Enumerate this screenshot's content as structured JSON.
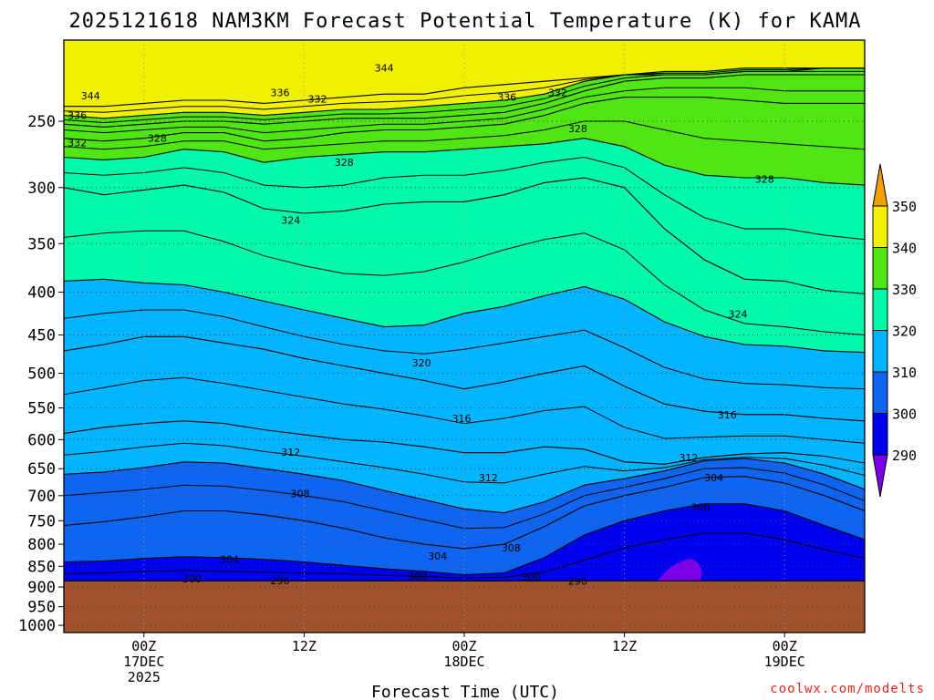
{
  "chart_data": {
    "type": "heatmap",
    "title": "2025121618 NAM3KM Forecast Potential Temperature (K) for KAMA",
    "xlabel": "Forecast Time (UTC)",
    "ylabel": "",
    "y_scale": "log-pressure",
    "ylim": [
      1000,
      200
    ],
    "y_ticks": [
      250,
      300,
      350,
      400,
      450,
      500,
      550,
      600,
      650,
      700,
      750,
      800,
      850,
      900,
      950,
      1000
    ],
    "x_ticks": [
      {
        "hour": 6,
        "line1": "00Z",
        "line2": "17DEC",
        "line3": "2025"
      },
      {
        "hour": 18,
        "line1": "12Z",
        "line2": "",
        "line3": ""
      },
      {
        "hour": 30,
        "line1": "00Z",
        "line2": "18DEC",
        "line3": ""
      },
      {
        "hour": 42,
        "line1": "12Z",
        "line2": "",
        "line3": ""
      },
      {
        "hour": 54,
        "line1": "00Z",
        "line2": "19DEC",
        "line3": ""
      }
    ],
    "xlim": [
      0,
      60
    ],
    "grid": true,
    "surface_pressure": 885,
    "colorbar": {
      "levels": [
        290,
        300,
        310,
        320,
        330,
        340,
        350
      ],
      "colors": [
        "#7a00e6",
        "#0000f0",
        "#0f64f0",
        "#00b4ff",
        "#00faaa",
        "#50e614",
        "#f0f000",
        "#f0a000"
      ]
    },
    "isotherm_lines": [
      {
        "value": 344,
        "levels": [
          240,
          240,
          238,
          236,
          236,
          238,
          236,
          234,
          232,
          232,
          228,
          226,
          224,
          222,
          220,
          220,
          220,
          218,
          218,
          216,
          216
        ]
      },
      {
        "value": 340,
        "levels": [
          246,
          248,
          246,
          244,
          244,
          246,
          244,
          242,
          242,
          240,
          238,
          236,
          232,
          224,
          220,
          218,
          218,
          216,
          216,
          216,
          216
        ]
      },
      {
        "value": 336,
        "levels": [
          252,
          254,
          252,
          250,
          250,
          252,
          250,
          248,
          248,
          248,
          246,
          244,
          238,
          230,
          224,
          222,
          222,
          220,
          220,
          220,
          220
        ]
      },
      {
        "value": 332,
        "levels": [
          262,
          264,
          262,
          258,
          258,
          264,
          262,
          258,
          256,
          256,
          254,
          252,
          246,
          238,
          234,
          234,
          234,
          236,
          238,
          238,
          238
        ]
      },
      {
        "value": 328,
        "levels": [
          276,
          278,
          276,
          270,
          272,
          280,
          276,
          274,
          272,
          272,
          270,
          268,
          266,
          262,
          268,
          282,
          290,
          292,
          292,
          296,
          298
        ]
      },
      {
        "value": 324,
        "levels": [
          300,
          306,
          302,
          298,
          304,
          318,
          322,
          320,
          314,
          312,
          312,
          306,
          296,
          292,
          300,
          336,
          366,
          386,
          388,
          398,
          402
        ]
      },
      {
        "value": 320,
        "levels": [
          388,
          386,
          390,
          392,
          400,
          410,
          420,
          430,
          440,
          438,
          424,
          416,
          404,
          394,
          408,
          434,
          452,
          462,
          464,
          470,
          472
        ]
      },
      {
        "value": 316,
        "levels": [
          470,
          462,
          452,
          452,
          460,
          468,
          480,
          490,
          500,
          510,
          522,
          512,
          500,
          490,
          518,
          544,
          555,
          560,
          560,
          566,
          570
        ]
      },
      {
        "value": 312,
        "levels": [
          590,
          580,
          574,
          570,
          574,
          584,
          592,
          600,
          604,
          612,
          622,
          622,
          612,
          616,
          638,
          642,
          630,
          624,
          622,
          628,
          640
        ]
      },
      {
        "value": 308,
        "levels": [
          660,
          656,
          648,
          638,
          640,
          650,
          660,
          672,
          690,
          708,
          726,
          734,
          712,
          680,
          668,
          654,
          636,
          632,
          640,
          660,
          688
        ]
      },
      {
        "value": 304,
        "levels": [
          760,
          752,
          742,
          730,
          730,
          738,
          750,
          766,
          786,
          800,
          810,
          800,
          762,
          720,
          700,
          684,
          666,
          664,
          676,
          700,
          730
        ]
      },
      {
        "value": 300,
        "levels": [
          840,
          838,
          832,
          828,
          830,
          834,
          840,
          848,
          856,
          862,
          870,
          866,
          830,
          780,
          750,
          730,
          716,
          716,
          730,
          760,
          790
        ]
      }
    ],
    "contour_labels": [
      {
        "text": "344",
        "hour": 2.0,
        "p": 233
      },
      {
        "text": "344",
        "hour": 24.0,
        "p": 216
      },
      {
        "text": "336",
        "hour": 1.0,
        "p": 246
      },
      {
        "text": "336",
        "hour": 16.2,
        "p": 231
      },
      {
        "text": "336",
        "hour": 33.2,
        "p": 234
      },
      {
        "text": "332",
        "hour": 1.0,
        "p": 265
      },
      {
        "text": "332",
        "hour": 19.0,
        "p": 235
      },
      {
        "text": "332",
        "hour": 37.0,
        "p": 231
      },
      {
        "text": "328",
        "hour": 7.0,
        "p": 262
      },
      {
        "text": "328",
        "hour": 21.0,
        "p": 280
      },
      {
        "text": "328",
        "hour": 38.5,
        "p": 255
      },
      {
        "text": "328",
        "hour": 52.5,
        "p": 293
      },
      {
        "text": "324",
        "hour": 17.0,
        "p": 328
      },
      {
        "text": "324",
        "hour": 50.5,
        "p": 425
      },
      {
        "text": "320",
        "hour": 26.8,
        "p": 486
      },
      {
        "text": "316",
        "hour": 29.8,
        "p": 566
      },
      {
        "text": "316",
        "hour": 49.7,
        "p": 560
      },
      {
        "text": "312",
        "hour": 17.0,
        "p": 621
      },
      {
        "text": "312",
        "hour": 31.8,
        "p": 666
      },
      {
        "text": "312",
        "hour": 46.8,
        "p": 630
      },
      {
        "text": "308",
        "hour": 17.7,
        "p": 696
      },
      {
        "text": "308",
        "hour": 33.5,
        "p": 808
      },
      {
        "text": "304",
        "hour": 12.4,
        "p": 834
      },
      {
        "text": "304",
        "hour": 28.0,
        "p": 826
      },
      {
        "text": "304",
        "hour": 48.7,
        "p": 666
      },
      {
        "text": "300",
        "hour": 9.6,
        "p": 880
      },
      {
        "text": "300",
        "hour": 26.5,
        "p": 873
      },
      {
        "text": "300",
        "hour": 35.0,
        "p": 875
      },
      {
        "text": "300",
        "hour": 47.7,
        "p": 723
      },
      {
        "text": "296",
        "hour": 16.2,
        "p": 884
      },
      {
        "text": "296",
        "hour": 38.5,
        "p": 885
      }
    ]
  },
  "credit": "coolwx.com/modelts"
}
